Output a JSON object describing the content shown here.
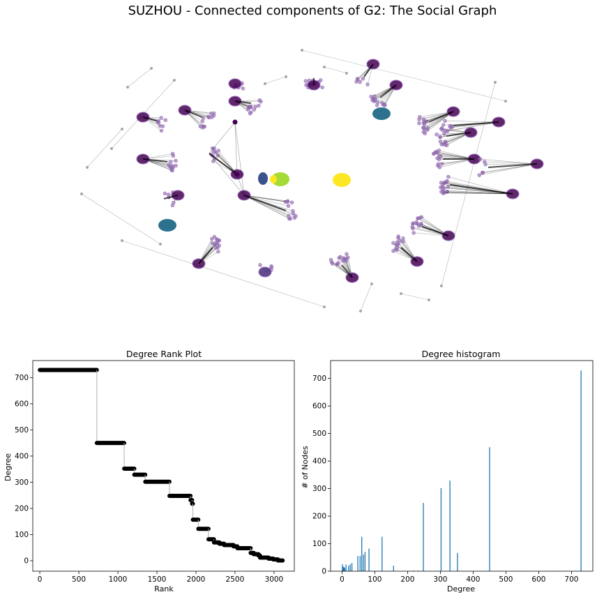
{
  "figure": {
    "title": "SUZHOU - Connected components of G2: The Social Graph"
  },
  "colors": {
    "bg": "#ffffff",
    "node_purple": "#440154",
    "node_violet": "#472d7b",
    "node_indigo": "#3b528b",
    "node_teal": "#2c728e",
    "node_green": "#a5db36",
    "node_yellow": "#fde725",
    "edge": "#000000",
    "rank_line": "#b0b0b0",
    "rank_marker": "#000000",
    "hist_bar": "#1f77b4"
  },
  "chart_data": [
    {
      "type": "network",
      "title": "SUZHOU - Connected components of G2: The Social Graph",
      "components": [
        {
          "kind": "hub",
          "color": "node_purple",
          "hub": [
            450,
            122
          ],
          "anchor": [
            450,
            112
          ],
          "leaves": 14
        },
        {
          "kind": "hub",
          "color": "node_purple",
          "hub": [
            568,
            122
          ],
          "anchor": [
            545,
            140
          ],
          "leaves": 14
        },
        {
          "kind": "hub",
          "color": "node_purple",
          "hub": [
            650,
            160
          ],
          "anchor": [
            615,
            175
          ],
          "leaves": 16
        },
        {
          "kind": "hub",
          "color": "node_purple",
          "hub": [
            675,
            190
          ],
          "anchor": [
            640,
            195
          ],
          "leaves": 14
        },
        {
          "kind": "hub",
          "color": "node_purple",
          "hub": [
            680,
            228
          ],
          "anchor": [
            635,
            228
          ],
          "leaves": 14
        },
        {
          "kind": "hub",
          "color": "node_purple",
          "hub": [
            735,
            278
          ],
          "anchor": [
            645,
            265
          ],
          "leaves": 18
        },
        {
          "kind": "hub",
          "color": "node_purple",
          "hub": [
            643,
            338
          ],
          "anchor": [
            605,
            325
          ],
          "leaves": 14
        },
        {
          "kind": "hub",
          "color": "node_purple",
          "hub": [
            598,
            375
          ],
          "anchor": [
            575,
            355
          ],
          "leaves": 14
        },
        {
          "kind": "hub",
          "color": "node_purple",
          "hub": [
            505,
            398
          ],
          "anchor": [
            490,
            380
          ],
          "leaves": 16
        },
        {
          "kind": "hub",
          "color": "node_purple",
          "hub": [
            285,
            378
          ],
          "anchor": [
            305,
            355
          ],
          "leaves": 14
        },
        {
          "kind": "hub",
          "color": "node_purple",
          "hub": [
            205,
            228
          ],
          "anchor": [
            240,
            232
          ],
          "leaves": 12
        },
        {
          "kind": "hub",
          "color": "node_purple",
          "hub": [
            265,
            158
          ],
          "anchor": [
            290,
            168
          ],
          "leaves": 12
        },
        {
          "kind": "hub",
          "color": "node_purple",
          "hub": [
            337,
            145
          ],
          "anchor": [
            360,
            148
          ],
          "leaves": 14
        },
        {
          "kind": "hub",
          "color": "node_purple",
          "hub": [
            337,
            120
          ],
          "anchor": [
            337,
            120
          ],
          "leaves": 6
        },
        {
          "kind": "hub",
          "color": "node_purple",
          "hub": [
            535,
            92
          ],
          "anchor": [
            522,
            110
          ],
          "leaves": 6
        },
        {
          "kind": "hub",
          "color": "node_purple",
          "hub": [
            205,
            168
          ],
          "anchor": [
            225,
            173
          ],
          "leaves": 8
        },
        {
          "kind": "hub",
          "color": "node_purple",
          "hub": [
            255,
            280
          ],
          "anchor": [
            235,
            285
          ],
          "leaves": 6
        },
        {
          "kind": "hub",
          "color": "node_purple",
          "hub": [
            340,
            250
          ],
          "anchor": [
            300,
            220
          ],
          "leaves": 10
        },
        {
          "kind": "hub",
          "color": "node_purple",
          "hub": [
            350,
            280
          ],
          "anchor": [
            410,
            302
          ],
          "leaves": 12
        },
        {
          "kind": "hub",
          "color": "node_purple",
          "hub": [
            715,
            175
          ],
          "anchor": [
            650,
            180
          ],
          "leaves": 8
        },
        {
          "kind": "hub",
          "color": "node_purple",
          "hub": [
            770,
            235
          ],
          "anchor": [
            700,
            240
          ],
          "leaves": 6
        },
        {
          "kind": "hub",
          "color": "node_violet",
          "hub": [
            380,
            390
          ],
          "anchor": [
            380,
            390
          ],
          "leaves": 4
        },
        {
          "kind": "blob",
          "color": "node_indigo",
          "cx": 377,
          "cy": 256,
          "rx": 7,
          "ry": 9
        },
        {
          "kind": "blob",
          "color": "node_teal",
          "cx": 547,
          "cy": 163,
          "rx": 13,
          "ry": 9
        },
        {
          "kind": "blob",
          "color": "node_teal",
          "cx": 240,
          "cy": 323,
          "rx": 13,
          "ry": 9
        },
        {
          "kind": "blob",
          "color": "node_green",
          "cx": 402,
          "cy": 257,
          "rx": 13,
          "ry": 10
        },
        {
          "kind": "blob",
          "color": "node_yellow",
          "cx": 490,
          "cy": 258,
          "rx": 13,
          "ry": 10
        },
        {
          "kind": "blob",
          "color": "node_yellow",
          "cx": 392,
          "cy": 257,
          "rx": 5,
          "ry": 6
        },
        {
          "kind": "sparse",
          "points": [
            [
              183,
              125
            ],
            [
              217,
              98
            ],
            [
              250,
              115
            ],
            [
              160,
              213
            ],
            [
              175,
              185
            ],
            [
              125,
              240
            ],
            [
              117,
              278
            ],
            [
              230,
              350
            ],
            [
              175,
              345
            ],
            [
              465,
              440
            ],
            [
              517,
              446
            ],
            [
              533,
              407
            ],
            [
              575,
              421
            ],
            [
              615,
              430
            ],
            [
              633,
              410
            ],
            [
              710,
              118
            ],
            [
              725,
              145
            ],
            [
              433,
              72
            ],
            [
              465,
              96
            ],
            [
              497,
              105
            ],
            [
              380,
              120
            ],
            [
              410,
              110
            ]
          ]
        }
      ]
    },
    {
      "type": "scatter",
      "title": "Degree Rank Plot",
      "xlabel": "Rank",
      "ylabel": "Degree",
      "xlim": [
        -90,
        3260
      ],
      "ylim": [
        -40,
        765
      ],
      "xticks": [
        0,
        500,
        1000,
        1500,
        2000,
        2500,
        3000
      ],
      "yticks": [
        0,
        100,
        200,
        300,
        400,
        500,
        600,
        700
      ],
      "segments": [
        {
          "rank_from": 1,
          "rank_to": 730,
          "degree": 729
        },
        {
          "rank_from": 731,
          "rank_to": 1080,
          "degree": 450
        },
        {
          "rank_from": 1081,
          "rank_to": 1210,
          "degree": 352
        },
        {
          "rank_from": 1211,
          "rank_to": 1350,
          "degree": 329
        },
        {
          "rank_from": 1351,
          "rank_to": 1660,
          "degree": 302
        },
        {
          "rank_from": 1661,
          "rank_to": 1930,
          "degree": 248
        },
        {
          "rank_from": 1931,
          "rank_to": 1950,
          "degree": 232
        },
        {
          "rank_from": 1951,
          "rank_to": 1960,
          "degree": 218
        },
        {
          "rank_from": 1961,
          "rank_to": 2030,
          "degree": 157
        },
        {
          "rank_from": 2031,
          "rank_to": 2160,
          "degree": 122
        },
        {
          "rank_from": 2161,
          "rank_to": 2230,
          "degree": 82
        },
        {
          "rank_from": 2231,
          "rank_to": 2300,
          "degree": 70
        },
        {
          "rank_from": 2301,
          "rank_to": 2360,
          "degree": 65
        },
        {
          "rank_from": 2361,
          "rank_to": 2480,
          "degree": 60
        },
        {
          "rank_from": 2481,
          "rank_to": 2530,
          "degree": 55
        },
        {
          "rank_from": 2531,
          "rank_to": 2700,
          "degree": 48
        },
        {
          "rank_from": 2701,
          "rank_to": 2740,
          "degree": 30
        },
        {
          "rank_from": 2741,
          "rank_to": 2800,
          "degree": 25
        },
        {
          "rank_from": 2801,
          "rank_to": 2820,
          "degree": 20
        },
        {
          "rank_from": 2821,
          "rank_to": 2930,
          "degree": 12
        },
        {
          "rank_from": 2931,
          "rank_to": 2990,
          "degree": 8
        },
        {
          "rank_from": 2991,
          "rank_to": 3050,
          "degree": 5
        },
        {
          "rank_from": 3051,
          "rank_to": 3110,
          "degree": 1
        }
      ]
    },
    {
      "type": "bar",
      "title": "Degree histogram",
      "xlabel": "Degree",
      "ylabel": "# of Nodes",
      "xlim": [
        -35,
        765
      ],
      "ylim": [
        0,
        765
      ],
      "xticks": [
        0,
        100,
        200,
        300,
        400,
        500,
        600,
        700
      ],
      "yticks": [
        0,
        100,
        200,
        300,
        400,
        500,
        600,
        700
      ],
      "degrees": [
        1,
        2,
        3,
        4,
        5,
        6,
        7,
        8,
        12,
        20,
        25,
        30,
        48,
        55,
        60,
        65,
        70,
        82,
        122,
        157,
        218,
        232,
        248,
        302,
        329,
        352,
        450,
        729
      ],
      "counts": [
        25,
        18,
        10,
        15,
        12,
        10,
        14,
        12,
        24,
        20,
        25,
        30,
        55,
        55,
        125,
        60,
        70,
        82,
        125,
        20,
        2,
        2,
        248,
        302,
        329,
        66,
        450,
        729
      ]
    }
  ]
}
